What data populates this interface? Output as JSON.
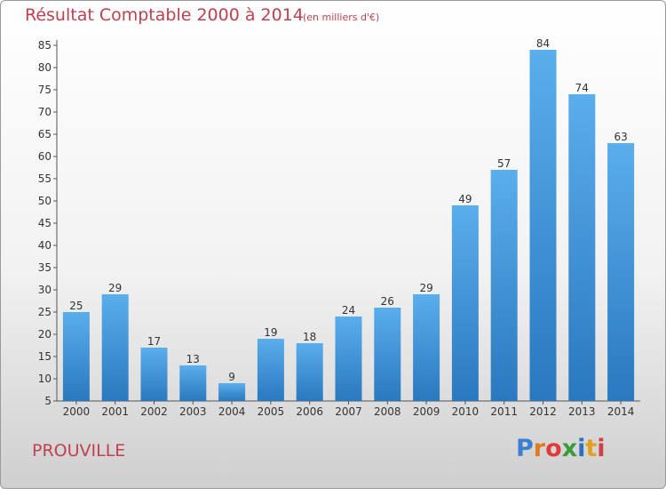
{
  "chart_data": {
    "type": "bar",
    "title": "Résultat Comptable 2000 à 2014",
    "subtitle": "(en milliers d'€)",
    "categories": [
      "2000",
      "2001",
      "2002",
      "2003",
      "2004",
      "2005",
      "2006",
      "2007",
      "2008",
      "2009",
      "2010",
      "2011",
      "2012",
      "2013",
      "2014"
    ],
    "values": [
      25,
      29,
      17,
      13,
      9,
      19,
      18,
      24,
      26,
      29,
      49,
      57,
      84,
      74,
      63
    ],
    "ylim": [
      5,
      85
    ],
    "yticks": [
      5,
      10,
      15,
      20,
      25,
      30,
      35,
      40,
      45,
      50,
      55,
      60,
      65,
      70,
      75,
      80,
      85
    ],
    "grid": false,
    "bar_color": "#3d8fd6"
  },
  "town": "PROUVILLE",
  "logo": [
    "P",
    "r",
    "o",
    "x",
    "i",
    "t",
    "i"
  ]
}
